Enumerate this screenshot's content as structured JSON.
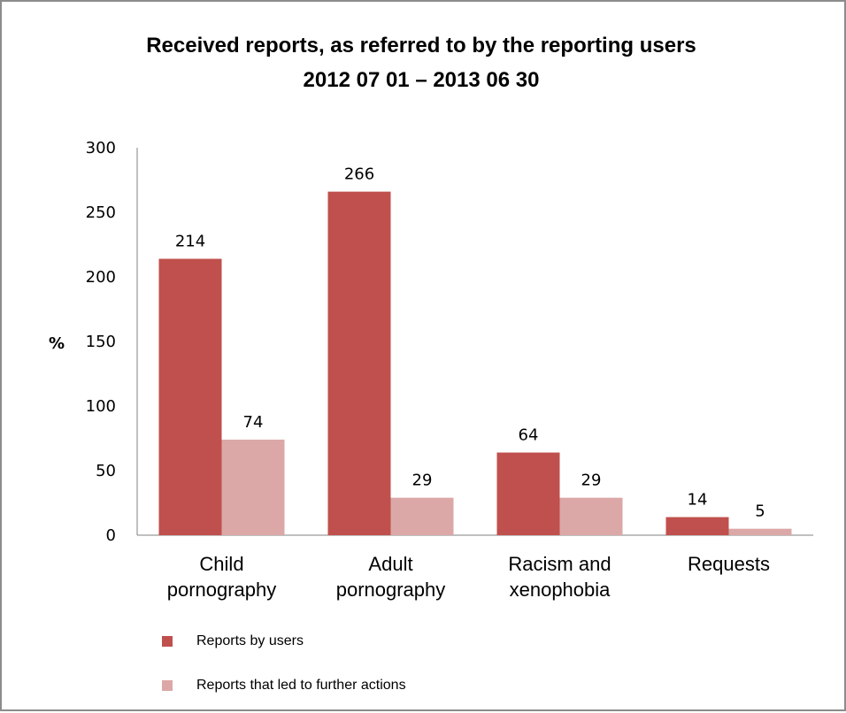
{
  "chart_data": {
    "type": "bar",
    "title": [
      "Received reports, as referred to by the reporting users",
      "2012 07 01 – 2013 06 30"
    ],
    "ylabel": "%",
    "xlabel": "",
    "ylim": [
      0,
      300
    ],
    "yticks": [
      0,
      50,
      100,
      150,
      200,
      250,
      300
    ],
    "categories": [
      [
        "Child",
        "pornography"
      ],
      [
        "Adult",
        "pornography"
      ],
      [
        "Racism and",
        "xenophobia"
      ],
      [
        "Requests"
      ]
    ],
    "series": [
      {
        "name": "Reports by users",
        "color": "#c0504d",
        "values": [
          214,
          266,
          64,
          14
        ]
      },
      {
        "name": "Reports that led to further actions",
        "color": "#dba8a7",
        "values": [
          74,
          29,
          29,
          5
        ]
      }
    ],
    "legend_position": "bottom-left",
    "grid": false
  }
}
